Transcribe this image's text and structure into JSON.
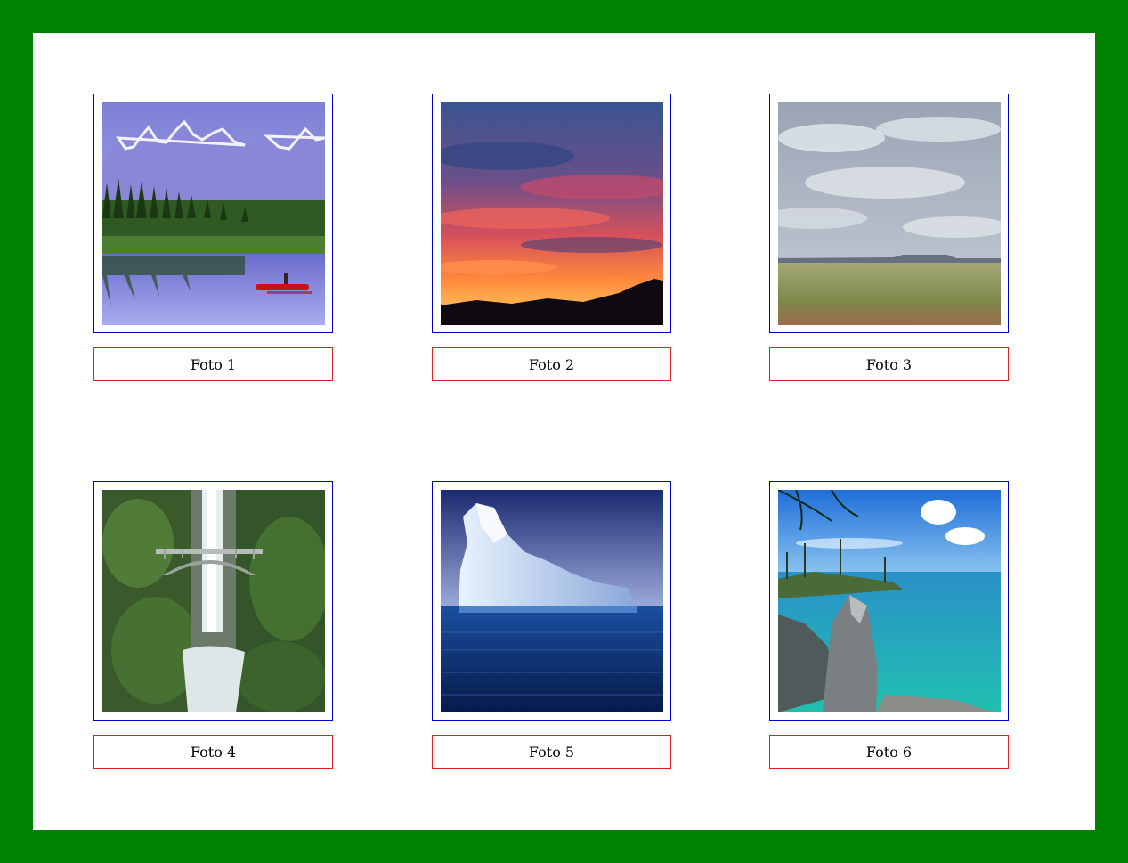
{
  "background_color": "#008000",
  "panel_color": "#ffffff",
  "frame_border_color": "#0000cc",
  "caption_border_color": "#dd2222",
  "gallery": [
    {
      "caption": "Foto 1",
      "subject": "mountain-lake-canoe"
    },
    {
      "caption": "Foto 2",
      "subject": "sunset-sky"
    },
    {
      "caption": "Foto 3",
      "subject": "cloudy-grassland"
    },
    {
      "caption": "Foto 4",
      "subject": "waterfall-bridge"
    },
    {
      "caption": "Foto 5",
      "subject": "iceberg-ocean"
    },
    {
      "caption": "Foto 6",
      "subject": "turquoise-lake-rocks"
    }
  ]
}
